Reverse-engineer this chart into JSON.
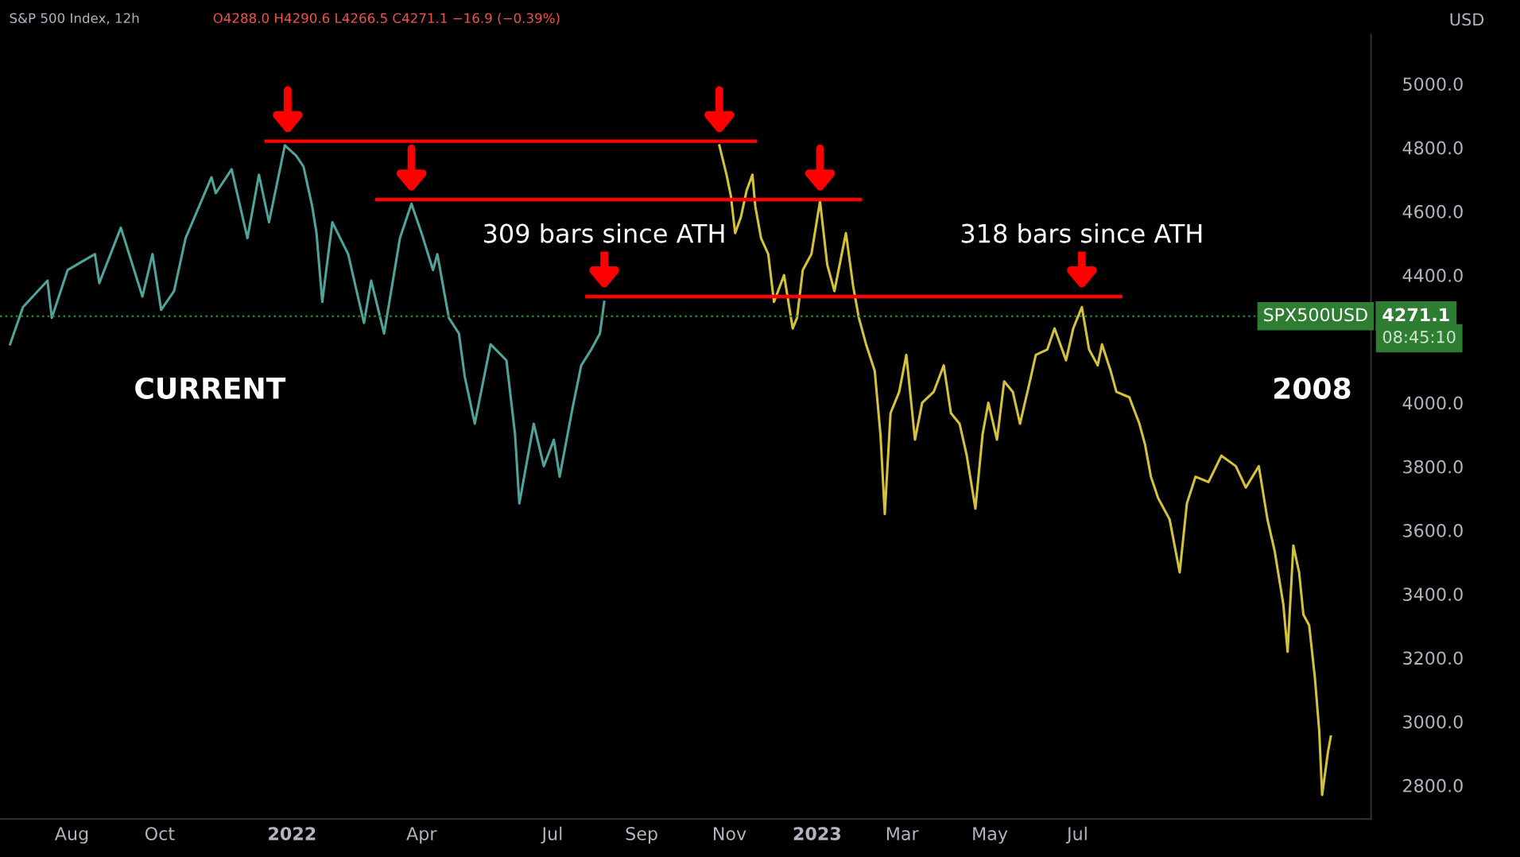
{
  "chart_data": {
    "type": "line",
    "title": "S&P 500 Index, 12h",
    "subtitle": "O4288.0 H4290.6 L4266.5 C4271.1 −16.9 (−0.39%)",
    "ylabel": "USD",
    "xlim": [
      "2021-06-12",
      "2024-01-21"
    ],
    "xticks": [
      {
        "value": "2021-08-01",
        "label": "Aug"
      },
      {
        "value": "2021-10-01",
        "label": "Oct"
      },
      {
        "value": "2022-01-01",
        "label": "2022"
      },
      {
        "value": "2022-04-01",
        "label": "Apr"
      },
      {
        "value": "2022-07-01",
        "label": "Jul"
      },
      {
        "value": "2022-09-01",
        "label": "Sep"
      },
      {
        "value": "2022-11-01",
        "label": "Nov"
      },
      {
        "value": "2023-01-01",
        "label": "2023"
      },
      {
        "value": "2023-03-01",
        "label": "Mar"
      },
      {
        "value": "2023-05-01",
        "label": "May"
      },
      {
        "value": "2023-07-01",
        "label": "Jul"
      }
    ],
    "ylim": [
      2695,
      5154
    ],
    "yticks": [
      {
        "value": 2800,
        "label": "2800.0"
      },
      {
        "value": 3000,
        "label": "3000.0"
      },
      {
        "value": 3200,
        "label": "3200.0"
      },
      {
        "value": 3400,
        "label": "3400.0"
      },
      {
        "value": 3600,
        "label": "3600.0"
      },
      {
        "value": 3800,
        "label": "3800.0"
      },
      {
        "value": 4000,
        "label": "4000.0"
      },
      {
        "value": 4400,
        "label": "4400.0"
      },
      {
        "value": 4600,
        "label": "4600.0"
      },
      {
        "value": 4800,
        "label": "4800.0"
      },
      {
        "value": 5000,
        "label": "5000.0"
      }
    ],
    "grid": false,
    "legend": false,
    "series": [
      {
        "color": "#4fa39a",
        "x": [
          "2021-06-19",
          "2021-06-28",
          "2021-07-15",
          "2021-07-18",
          "2021-07-29",
          "2021-08-17",
          "2021-08-20",
          "2021-09-04",
          "2021-09-19",
          "2021-09-26",
          "2021-10-02",
          "2021-10-11",
          "2021-10-19",
          "2021-11-06",
          "2021-11-09",
          "2021-11-20",
          "2021-12-01",
          "2021-12-09",
          "2021-12-16",
          "2021-12-27",
          "2022-01-04",
          "2022-01-09",
          "2022-01-15",
          "2022-01-18",
          "2022-01-22",
          "2022-01-29",
          "2022-02-09",
          "2022-02-20",
          "2022-02-25",
          "2022-03-06",
          "2022-03-17",
          "2022-03-25",
          "2022-04-01",
          "2022-04-09",
          "2022-04-12",
          "2022-04-20",
          "2022-04-27",
          "2022-05-01",
          "2022-05-08",
          "2022-05-19",
          "2022-05-30",
          "2022-06-05",
          "2022-06-08",
          "2022-06-18",
          "2022-06-25",
          "2022-07-02",
          "2022-07-06",
          "2022-07-15",
          "2022-07-21",
          "2022-07-28",
          "2022-08-03",
          "2022-08-06"
        ],
        "values": [
          4183,
          4300,
          4383,
          4266,
          4416,
          4466,
          4375,
          4549,
          4333,
          4466,
          4291,
          4350,
          4516,
          4707,
          4657,
          4732,
          4516,
          4715,
          4566,
          4807,
          4774,
          4740,
          4616,
          4532,
          4316,
          4566,
          4466,
          4250,
          4383,
          4217,
          4516,
          4624,
          4532,
          4416,
          4466,
          4266,
          4217,
          4083,
          3934,
          4183,
          4133,
          3901,
          3684,
          3934,
          3801,
          3884,
          3768,
          3984,
          4117,
          4167,
          4217,
          4316
        ]
      },
      {
        "color": "#d4c23a",
        "x": [
          "2022-10-25",
          "2022-10-30",
          "2022-11-02",
          "2022-11-05",
          "2022-11-09",
          "2022-11-13",
          "2022-11-17",
          "2022-11-19",
          "2022-11-23",
          "2022-11-28",
          "2022-12-02",
          "2022-12-09",
          "2022-12-15",
          "2022-12-18",
          "2022-12-22",
          "2022-12-28",
          "2023-01-03",
          "2023-01-08",
          "2023-01-13",
          "2023-01-21",
          "2023-01-26",
          "2023-01-30",
          "2023-02-04",
          "2023-02-10",
          "2023-02-14",
          "2023-02-17",
          "2023-02-21",
          "2023-02-27",
          "2023-03-04",
          "2023-03-10",
          "2023-03-15",
          "2023-03-23",
          "2023-03-30",
          "2023-04-04",
          "2023-04-10",
          "2023-04-15",
          "2023-04-21",
          "2023-04-26",
          "2023-04-30",
          "2023-05-06",
          "2023-05-11",
          "2023-05-17",
          "2023-05-22",
          "2023-05-28",
          "2023-06-02",
          "2023-06-10",
          "2023-06-15",
          "2023-06-23",
          "2023-06-28",
          "2023-07-04",
          "2023-07-09",
          "2023-07-15",
          "2023-07-18",
          "2023-07-24",
          "2023-07-28",
          "2023-08-06",
          "2023-08-13",
          "2023-08-17",
          "2023-08-21",
          "2023-08-26",
          "2023-09-03",
          "2023-09-10",
          "2023-09-15",
          "2023-09-21",
          "2023-09-30",
          "2023-10-09",
          "2023-10-19",
          "2023-10-26",
          "2023-11-04",
          "2023-11-10",
          "2023-11-15",
          "2023-11-21",
          "2023-11-24",
          "2023-11-28",
          "2023-12-02",
          "2023-12-05",
          "2023-12-09",
          "2023-12-13",
          "2023-12-16",
          "2023-12-18",
          "2023-12-22",
          "2023-12-24"
        ],
        "values": [
          4807,
          4715,
          4649,
          4532,
          4582,
          4666,
          4715,
          4616,
          4516,
          4466,
          4316,
          4400,
          4233,
          4266,
          4416,
          4466,
          4632,
          4433,
          4350,
          4532,
          4366,
          4266,
          4183,
          4100,
          3901,
          3651,
          3967,
          4034,
          4150,
          3884,
          4000,
          4034,
          4117,
          3967,
          3934,
          3834,
          3668,
          3901,
          4000,
          3884,
          4067,
          4034,
          3934,
          4050,
          4150,
          4167,
          4233,
          4133,
          4233,
          4300,
          4167,
          4117,
          4183,
          4100,
          4034,
          4017,
          3934,
          3867,
          3768,
          3701,
          3634,
          3468,
          3684,
          3768,
          3751,
          3834,
          3801,
          3734,
          3801,
          3634,
          3535,
          3369,
          3219,
          3552,
          3468,
          3335,
          3302,
          3136,
          2970,
          2770,
          2903,
          2953
        ]
      },
      {
        "color": "#ff0000",
        "x": [
          "2021-12-14",
          "2021-12-29",
          "2022-10-25",
          "2022-11-19"
        ],
        "values": [
          4820,
          4820,
          4820,
          4820
        ]
      },
      {
        "color": "#ff0000",
        "x": [
          "2022-03-01",
          "2022-03-25",
          "2023-01-03",
          "2023-01-31"
        ],
        "values": [
          4637,
          4637,
          4637,
          4637
        ]
      },
      {
        "color": "#ff0000",
        "x": [
          "2022-07-25",
          "2022-08-06",
          "2023-07-04",
          "2023-07-31"
        ],
        "values": [
          4333,
          4333,
          4333,
          4333
        ]
      }
    ],
    "ref_lines": [
      {
        "axis": "y",
        "value": 4271.1,
        "label": "SPX500USD",
        "color": "#2e7d32",
        "line_style": "dotted"
      }
    ],
    "annotations": [
      {
        "text": "309 bars since ATH",
        "x": "2022-08-06",
        "y": 4333
      },
      {
        "text": "318 bars since ATH",
        "x": "2023-07-04",
        "y": 4333
      },
      "CURRENT",
      "2008",
      "4271.1",
      "08:45:10"
    ]
  }
}
